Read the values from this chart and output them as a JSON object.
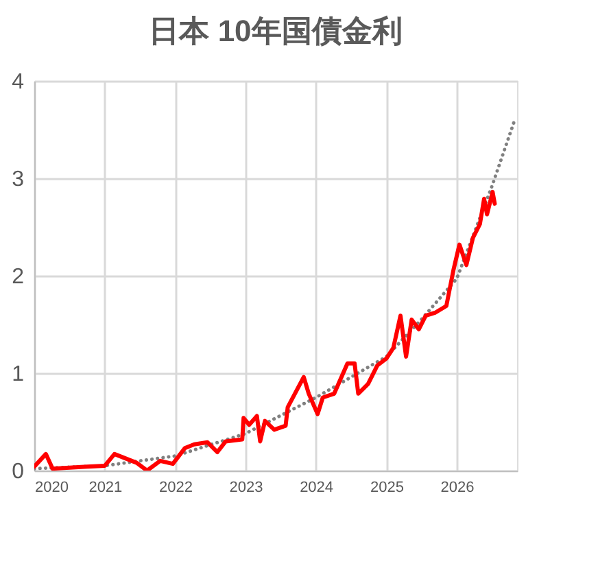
{
  "chart_data": {
    "type": "line",
    "title": "日本 10年国債金利",
    "xlim": [
      "2020-01-01",
      "2026-11-10"
    ],
    "xticks": [
      {
        "value": "2020-01-01",
        "label": "2020"
      },
      {
        "value": "2021-01-01",
        "label": "2021"
      },
      {
        "value": "2022-01-01",
        "label": "2022"
      },
      {
        "value": "2023-01-01",
        "label": "2023"
      },
      {
        "value": "2024-01-01",
        "label": "2024"
      },
      {
        "value": "2025-01-01",
        "label": "2025"
      },
      {
        "value": "2026-01-01",
        "label": "2026"
      }
    ],
    "ylim": [
      0,
      4
    ],
    "yticks": [
      0,
      1,
      2,
      3,
      4
    ],
    "grid": true,
    "series": [
      {
        "color": "#ff0000",
        "line_style": "solid",
        "x": [
          "2020-01-01",
          "2020-03-01",
          "2020-04-05",
          "2020-07-01",
          "2020-10-01",
          "2021-01-01",
          "2021-02-20",
          "2021-06-15",
          "2021-08-08",
          "2021-10-15",
          "2021-12-20",
          "2022-02-20",
          "2022-04-10",
          "2022-06-18",
          "2022-08-08",
          "2022-09-20",
          "2022-12-15",
          "2022-12-22",
          "2023-01-20",
          "2023-03-01",
          "2023-03-18",
          "2023-04-12",
          "2023-05-30",
          "2023-07-28",
          "2023-08-08",
          "2023-10-30",
          "2023-11-25",
          "2024-01-10",
          "2024-02-06",
          "2024-04-05",
          "2024-06-13",
          "2024-07-20",
          "2024-08-08",
          "2024-09-28",
          "2024-11-15",
          "2025-01-01",
          "2025-02-06",
          "2025-03-15",
          "2025-04-13",
          "2025-05-12",
          "2025-06-18",
          "2025-07-24",
          "2025-09-10",
          "2025-11-08",
          "2025-12-15",
          "2026-01-15",
          "2026-02-20",
          "2026-03-26",
          "2026-05-01",
          "2026-05-23",
          "2026-06-07",
          "2026-07-06",
          "2026-07-17"
        ],
        "values": [
          0.04,
          0.17,
          0.02,
          0.03,
          0.04,
          0.05,
          0.17,
          0.08,
          0.0,
          0.1,
          0.07,
          0.23,
          0.27,
          0.29,
          0.19,
          0.3,
          0.32,
          0.54,
          0.47,
          0.56,
          0.3,
          0.51,
          0.42,
          0.46,
          0.65,
          0.96,
          0.79,
          0.58,
          0.75,
          0.79,
          1.1,
          1.1,
          0.79,
          0.89,
          1.08,
          1.15,
          1.26,
          1.59,
          1.17,
          1.55,
          1.45,
          1.59,
          1.62,
          1.69,
          2.06,
          2.32,
          2.11,
          2.39,
          2.53,
          2.79,
          2.63,
          2.86,
          2.74
        ]
      },
      {
        "color": "#808080",
        "line_style": "dotted",
        "x": [
          "2020-01-01",
          "2021-01-01",
          "2022-01-01",
          "2023-01-01",
          "2024-01-01",
          "2025-01-01",
          "2025-07-01",
          "2026-01-01",
          "2026-07-01",
          "2026-10-27"
        ],
        "values": [
          0.02,
          0.05,
          0.15,
          0.38,
          0.75,
          1.17,
          1.55,
          1.97,
          2.91,
          3.59
        ]
      }
    ]
  }
}
